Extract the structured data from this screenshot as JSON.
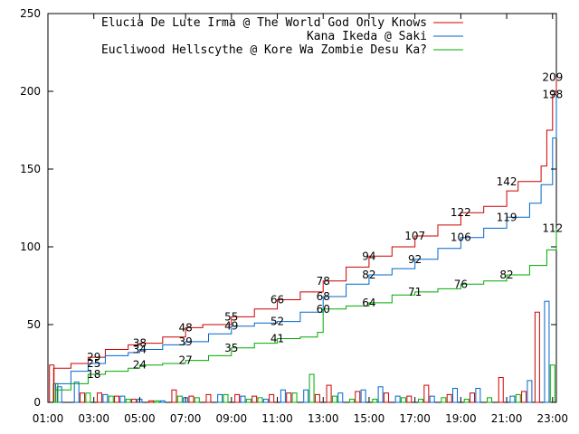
{
  "chart_data": {
    "type": "line",
    "title": "",
    "xlabel": "",
    "ylabel": "",
    "ylim": [
      0,
      250
    ],
    "xlim": [
      "01:00",
      "23:10"
    ],
    "y_ticks": [
      0,
      50,
      100,
      150,
      200,
      250
    ],
    "x_ticks": [
      "01:00",
      "03:00",
      "05:00",
      "07:00",
      "09:00",
      "11:00",
      "13:00",
      "15:00",
      "17:00",
      "19:00",
      "21:00",
      "23:00"
    ],
    "grid": false,
    "legend": "top-right",
    "series": [
      {
        "name": "Elucia De Lute Irma @ The World God Only Knows",
        "color": "#cc0000",
        "cumulative": [
          [
            "01:00",
            0
          ],
          [
            "01:15",
            22
          ],
          [
            "02:00",
            25
          ],
          [
            "02:45",
            29
          ],
          [
            "03:30",
            34
          ],
          [
            "04:30",
            37
          ],
          [
            "05:00",
            38
          ],
          [
            "06:00",
            42
          ],
          [
            "07:00",
            48
          ],
          [
            "07:45",
            50
          ],
          [
            "09:00",
            55
          ],
          [
            "10:00",
            60
          ],
          [
            "11:00",
            66
          ],
          [
            "12:00",
            71
          ],
          [
            "13:00",
            78
          ],
          [
            "14:00",
            87
          ],
          [
            "15:00",
            94
          ],
          [
            "16:00",
            100
          ],
          [
            "17:00",
            107
          ],
          [
            "18:00",
            114
          ],
          [
            "19:00",
            122
          ],
          [
            "20:00",
            126
          ],
          [
            "21:00",
            136
          ],
          [
            "21:30",
            142
          ],
          [
            "22:30",
            152
          ],
          [
            "22:45",
            175
          ],
          [
            "23:00",
            198
          ],
          [
            "23:10",
            209
          ]
        ],
        "labels": [
          [
            "03:00",
            29
          ],
          [
            "05:00",
            38
          ],
          [
            "07:00",
            48
          ],
          [
            "09:00",
            55
          ],
          [
            "11:00",
            66
          ],
          [
            "13:00",
            78
          ],
          [
            "15:00",
            94
          ],
          [
            "17:00",
            107
          ],
          [
            "19:00",
            122
          ],
          [
            "21:00",
            142
          ],
          [
            "23:00",
            209
          ]
        ],
        "hourly": [
          [
            "01:10",
            24
          ],
          [
            "02:30",
            6
          ],
          [
            "03:15",
            6
          ],
          [
            "04:00",
            4
          ],
          [
            "04:45",
            2
          ],
          [
            "05:30",
            1
          ],
          [
            "06:30",
            8
          ],
          [
            "07:15",
            4
          ],
          [
            "08:00",
            5
          ],
          [
            "09:15",
            5
          ],
          [
            "10:00",
            4
          ],
          [
            "10:45",
            5
          ],
          [
            "11:30",
            6
          ],
          [
            "12:45",
            5
          ],
          [
            "13:15",
            11
          ],
          [
            "14:30",
            7
          ],
          [
            "15:45",
            6
          ],
          [
            "16:45",
            4
          ],
          [
            "17:30",
            11
          ],
          [
            "18:30",
            5
          ],
          [
            "19:30",
            6
          ],
          [
            "20:45",
            16
          ],
          [
            "21:45",
            7
          ],
          [
            "22:20",
            58
          ]
        ]
      },
      {
        "name": "Kana Ikeda @ Saki",
        "color": "#0066cc",
        "cumulative": [
          [
            "01:00",
            0
          ],
          [
            "01:20",
            12
          ],
          [
            "02:00",
            20
          ],
          [
            "02:45",
            25
          ],
          [
            "03:30",
            30
          ],
          [
            "04:30",
            32
          ],
          [
            "05:00",
            34
          ],
          [
            "06:00",
            37
          ],
          [
            "07:00",
            39
          ],
          [
            "08:00",
            44
          ],
          [
            "09:00",
            49
          ],
          [
            "10:00",
            51
          ],
          [
            "11:00",
            52
          ],
          [
            "12:00",
            58
          ],
          [
            "13:00",
            68
          ],
          [
            "14:00",
            76
          ],
          [
            "15:00",
            82
          ],
          [
            "16:00",
            86
          ],
          [
            "17:00",
            92
          ],
          [
            "18:00",
            99
          ],
          [
            "19:00",
            106
          ],
          [
            "20:00",
            112
          ],
          [
            "21:00",
            119
          ],
          [
            "22:00",
            128
          ],
          [
            "22:30",
            140
          ],
          [
            "23:00",
            170
          ],
          [
            "23:10",
            198
          ]
        ],
        "labels": [
          [
            "03:00",
            25
          ],
          [
            "05:00",
            34
          ],
          [
            "07:00",
            39
          ],
          [
            "09:00",
            49
          ],
          [
            "11:00",
            52
          ],
          [
            "13:00",
            68
          ],
          [
            "15:00",
            82
          ],
          [
            "17:00",
            92
          ],
          [
            "19:00",
            106
          ],
          [
            "21:00",
            119
          ],
          [
            "23:00",
            198
          ]
        ],
        "hourly": [
          [
            "01:30",
            10
          ],
          [
            "02:15",
            13
          ],
          [
            "03:30",
            5
          ],
          [
            "04:15",
            4
          ],
          [
            "05:00",
            2
          ],
          [
            "06:00",
            1
          ],
          [
            "07:00",
            3
          ],
          [
            "08:30",
            5
          ],
          [
            "09:30",
            4
          ],
          [
            "10:30",
            2
          ],
          [
            "11:15",
            8
          ],
          [
            "12:15",
            8
          ],
          [
            "13:45",
            6
          ],
          [
            "14:45",
            8
          ],
          [
            "15:30",
            10
          ],
          [
            "16:15",
            4
          ],
          [
            "17:45",
            4
          ],
          [
            "18:45",
            9
          ],
          [
            "19:45",
            9
          ],
          [
            "21:15",
            4
          ],
          [
            "22:00",
            14
          ],
          [
            "22:45",
            65
          ]
        ]
      },
      {
        "name": "Eucliwood Hellscythe @ Kore Wa Zombie Desu Ka?",
        "color": "#00aa00",
        "cumulative": [
          [
            "01:00",
            0
          ],
          [
            "01:20",
            8
          ],
          [
            "02:00",
            12
          ],
          [
            "02:45",
            18
          ],
          [
            "03:30",
            20
          ],
          [
            "04:30",
            22
          ],
          [
            "05:00",
            24
          ],
          [
            "06:00",
            25
          ],
          [
            "07:00",
            27
          ],
          [
            "08:00",
            30
          ],
          [
            "09:00",
            35
          ],
          [
            "10:00",
            38
          ],
          [
            "11:00",
            41
          ],
          [
            "12:00",
            42
          ],
          [
            "12:45",
            45
          ],
          [
            "13:00",
            60
          ],
          [
            "14:00",
            62
          ],
          [
            "15:00",
            64
          ],
          [
            "16:00",
            69
          ],
          [
            "17:00",
            71
          ],
          [
            "18:00",
            73
          ],
          [
            "19:00",
            76
          ],
          [
            "20:00",
            78
          ],
          [
            "21:00",
            82
          ],
          [
            "22:00",
            88
          ],
          [
            "22:45",
            98
          ],
          [
            "23:10",
            112
          ]
        ],
        "labels": [
          [
            "03:00",
            18
          ],
          [
            "05:00",
            24
          ],
          [
            "07:00",
            27
          ],
          [
            "09:00",
            35
          ],
          [
            "11:00",
            41
          ],
          [
            "13:00",
            60
          ],
          [
            "15:00",
            64
          ],
          [
            "17:00",
            71
          ],
          [
            "19:00",
            76
          ],
          [
            "21:00",
            82
          ],
          [
            "23:00",
            112
          ]
        ],
        "hourly": [
          [
            "01:20",
            12
          ],
          [
            "02:45",
            6
          ],
          [
            "03:45",
            4
          ],
          [
            "04:30",
            2
          ],
          [
            "05:45",
            1
          ],
          [
            "06:45",
            4
          ],
          [
            "07:30",
            3
          ],
          [
            "08:45",
            5
          ],
          [
            "09:45",
            2
          ],
          [
            "10:15",
            3
          ],
          [
            "11:45",
            6
          ],
          [
            "12:30",
            18
          ],
          [
            "13:30",
            4
          ],
          [
            "14:15",
            2
          ],
          [
            "15:15",
            2
          ],
          [
            "16:30",
            3
          ],
          [
            "17:15",
            2
          ],
          [
            "18:15",
            3
          ],
          [
            "19:15",
            2
          ],
          [
            "20:15",
            3
          ],
          [
            "21:30",
            5
          ],
          [
            "23:00",
            24
          ]
        ]
      }
    ]
  }
}
